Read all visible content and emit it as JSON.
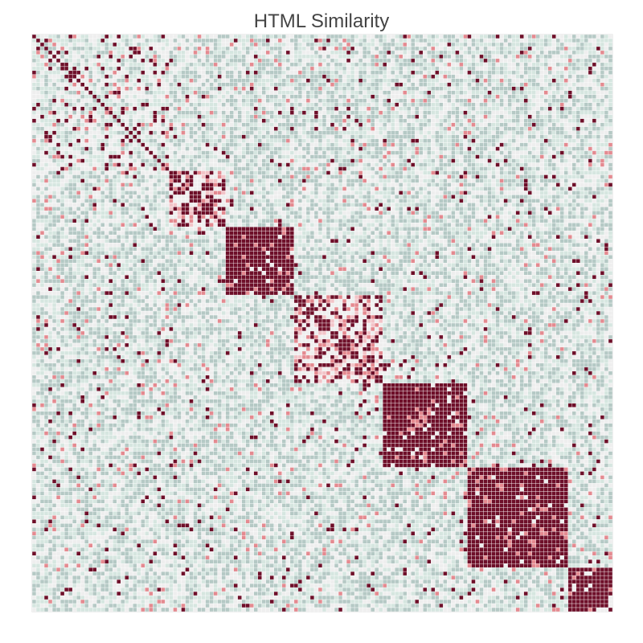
{
  "chart_data": {
    "type": "heatmap",
    "title": "HTML Similarity",
    "rows": 144,
    "cols": 144,
    "value_range": [
      0,
      1
    ],
    "grid_lines": true,
    "grid_color": "#ffffff",
    "background_color": "#ffffff",
    "color_scale": {
      "low": "#b5c9c5",
      "mid_low": "#d6e6e0",
      "mid": "#eeeeee",
      "mid_high": "#f2c4c8",
      "high": "#e48a90",
      "max": "#6e0f29"
    },
    "clusters": [
      {
        "start": 0,
        "end": 34,
        "diag": 0.2
      },
      {
        "start": 34,
        "end": 48,
        "diag": 0.5
      },
      {
        "start": 48,
        "end": 65,
        "diag": 0.95
      },
      {
        "start": 65,
        "end": 87,
        "diag": 0.6
      },
      {
        "start": 87,
        "end": 108,
        "diag": 0.97
      },
      {
        "start": 108,
        "end": 133,
        "diag": 0.98
      },
      {
        "start": 133,
        "end": 144,
        "diag": 0.9
      }
    ]
  }
}
